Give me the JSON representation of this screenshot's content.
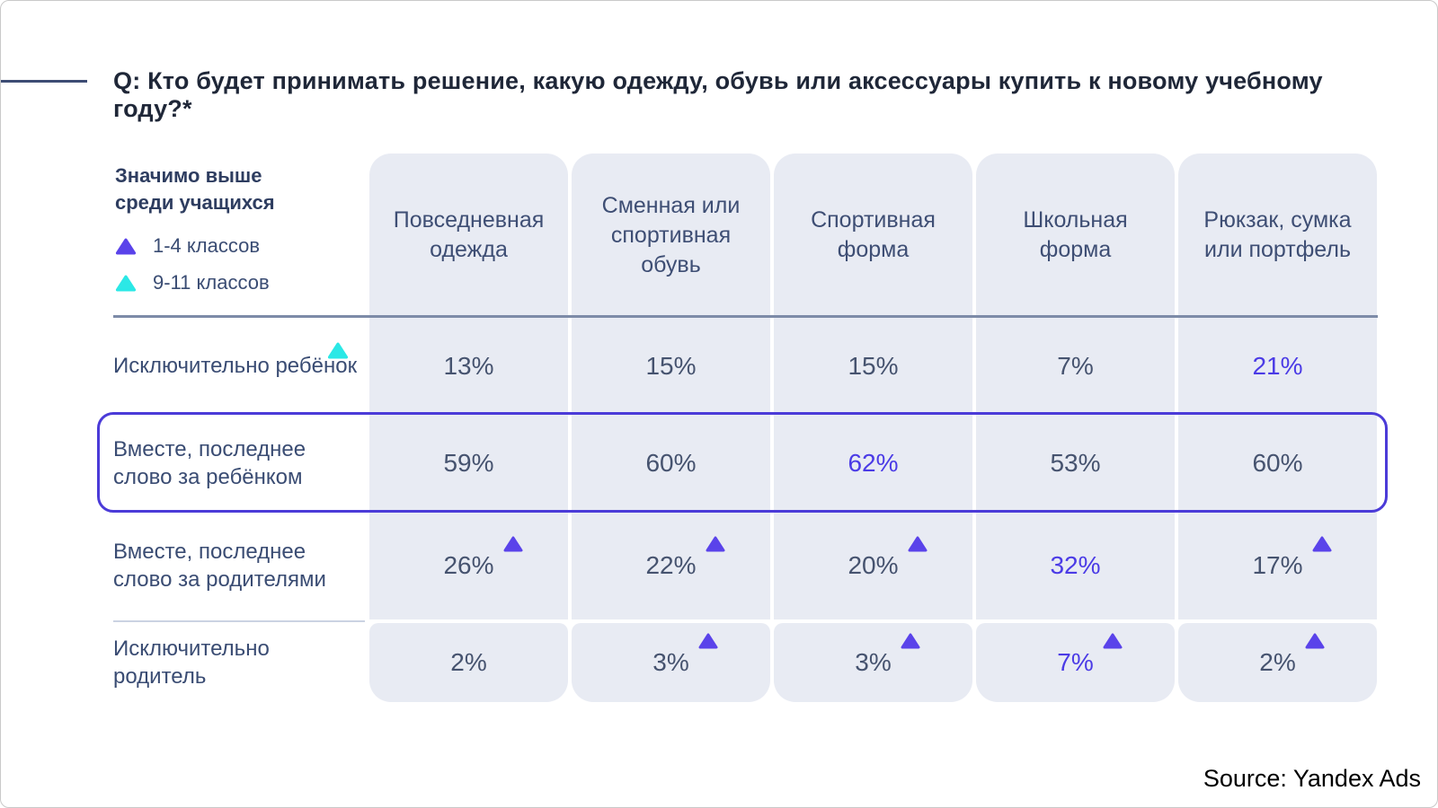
{
  "title": "Q: Кто будет принимать решение, какую одежду, обувь или аксессуары купить к новому учебному году?*",
  "legend": {
    "heading_line1": "Значимо выше",
    "heading_line2": "среди учащихся",
    "items": [
      {
        "label": "1-4 классов",
        "symbol": "triangle-up",
        "color": "#5a43ea"
      },
      {
        "label": "9-11 классов",
        "symbol": "triangle-up",
        "color": "#2be8e6"
      }
    ]
  },
  "table": {
    "column_headers": [
      "Повседневная одежда",
      "Сменная или спортивная обувь",
      "Спортивная форма",
      "Школьная форма",
      "Рюкзак, сумка или портфель"
    ],
    "rows": [
      {
        "label": "Исключительно ребёнок",
        "label_marker": "cyan",
        "highlighted": false,
        "cells": [
          {
            "value": "13%"
          },
          {
            "value": "15%"
          },
          {
            "value": "15%"
          },
          {
            "value": "7%"
          },
          {
            "value": "21%",
            "emphasis": true
          }
        ]
      },
      {
        "label": "Вместе, последнее слово за ребёнком",
        "highlighted": true,
        "cells": [
          {
            "value": "59%"
          },
          {
            "value": "60%"
          },
          {
            "value": "62%",
            "emphasis": true
          },
          {
            "value": "53%"
          },
          {
            "value": "60%"
          }
        ]
      },
      {
        "label": "Вместе, последнее слово за родителями",
        "highlighted": false,
        "cells": [
          {
            "value": "26%",
            "marker": "purple"
          },
          {
            "value": "22%",
            "marker": "purple"
          },
          {
            "value": "20%",
            "marker": "purple"
          },
          {
            "value": "32%",
            "emphasis": true
          },
          {
            "value": "17%",
            "marker": "purple"
          }
        ]
      },
      {
        "label": "Исключительно родитель",
        "highlighted": false,
        "cells": [
          {
            "value": "2%"
          },
          {
            "value": "3%",
            "marker": "purple"
          },
          {
            "value": "3%",
            "marker": "purple"
          },
          {
            "value": "7%",
            "emphasis": true,
            "marker": "purple"
          },
          {
            "value": "2%",
            "marker": "purple"
          }
        ]
      }
    ]
  },
  "source": "Source: Yandex Ads",
  "colors": {
    "title_text": "#1f2738",
    "label_text": "#3a4c73",
    "header_text": "#3e4e74",
    "value_text": "#46536f",
    "emphasis_blue": "#4b3be6",
    "triangle_purple": "#5a43ea",
    "triangle_cyan": "#2be8e6",
    "cell_background": "#e8ebf3",
    "highlight_ring": "#4b3bd8",
    "navy_divider": "#7d8ba8",
    "accent_line": "#3d4c74"
  },
  "chart_data": {
    "type": "table",
    "title": "Q: Кто будет принимать решение, какую одежду, обувь или аксессуары купить к новому учебному году?*",
    "categories": [
      "Повседневная одежда",
      "Сменная или спортивная обувь",
      "Спортивная форма",
      "Школьная форма",
      "Рюкзак, сумка или портфель"
    ],
    "series": [
      {
        "name": "Исключительно ребёнок",
        "values": [
          13,
          15,
          15,
          7,
          21
        ]
      },
      {
        "name": "Вместе, последнее слово за ребёнком",
        "values": [
          59,
          60,
          62,
          53,
          60
        ]
      },
      {
        "name": "Вместе, последнее слово за родителями",
        "values": [
          26,
          22,
          20,
          32,
          17
        ]
      },
      {
        "name": "Исключительно родитель",
        "values": [
          2,
          3,
          3,
          7,
          2
        ]
      }
    ],
    "unit": "%",
    "legend_entries": [
      "Значимо выше среди учащихся 1-4 классов",
      "Значимо выше среди учащихся 9-11 классов"
    ],
    "significant_1_4_markers": [
      [
        2,
        0
      ],
      [
        2,
        1
      ],
      [
        2,
        2
      ],
      [
        2,
        4
      ],
      [
        3,
        1
      ],
      [
        3,
        2
      ],
      [
        3,
        3
      ],
      [
        3,
        4
      ]
    ],
    "significant_9_11_markers": [
      [
        0,
        "row-label"
      ]
    ],
    "emphasized_blue_cells": [
      [
        0,
        4
      ],
      [
        1,
        2
      ],
      [
        2,
        3
      ],
      [
        3,
        3
      ]
    ],
    "highlighted_row": "Вместе, последнее слово за ребёнком"
  }
}
